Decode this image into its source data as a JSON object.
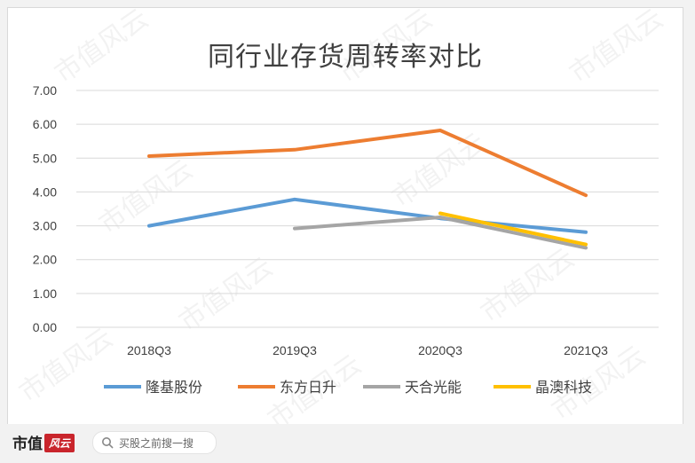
{
  "page": {
    "title": "同行业存货周转率对比",
    "watermark": "市值风云",
    "footer": {
      "brand": "市值",
      "brand_mark": "风云",
      "search_placeholder": "买股之前搜一搜"
    }
  },
  "chart_data": {
    "type": "line",
    "title": "同行业存货周转率对比",
    "categories": [
      "2018Q3",
      "2019Q3",
      "2020Q3",
      "2021Q3"
    ],
    "ylim": [
      0,
      7
    ],
    "yticks": [
      "0.00",
      "1.00",
      "2.00",
      "3.00",
      "4.00",
      "5.00",
      "6.00",
      "7.00"
    ],
    "grid": true,
    "legend_position": "bottom",
    "series": [
      {
        "name": "隆基股份",
        "color": "#5b9bd5",
        "values": [
          3.0,
          3.78,
          3.22,
          2.81
        ]
      },
      {
        "name": "东方日升",
        "color": "#ed7d31",
        "values": [
          5.06,
          5.25,
          5.82,
          3.9
        ]
      },
      {
        "name": "天合光能",
        "color": "#a5a5a5",
        "values": [
          null,
          2.92,
          3.25,
          2.35
        ]
      },
      {
        "name": "晶澳科技",
        "color": "#ffc000",
        "values": [
          null,
          null,
          3.37,
          2.45
        ]
      }
    ]
  }
}
